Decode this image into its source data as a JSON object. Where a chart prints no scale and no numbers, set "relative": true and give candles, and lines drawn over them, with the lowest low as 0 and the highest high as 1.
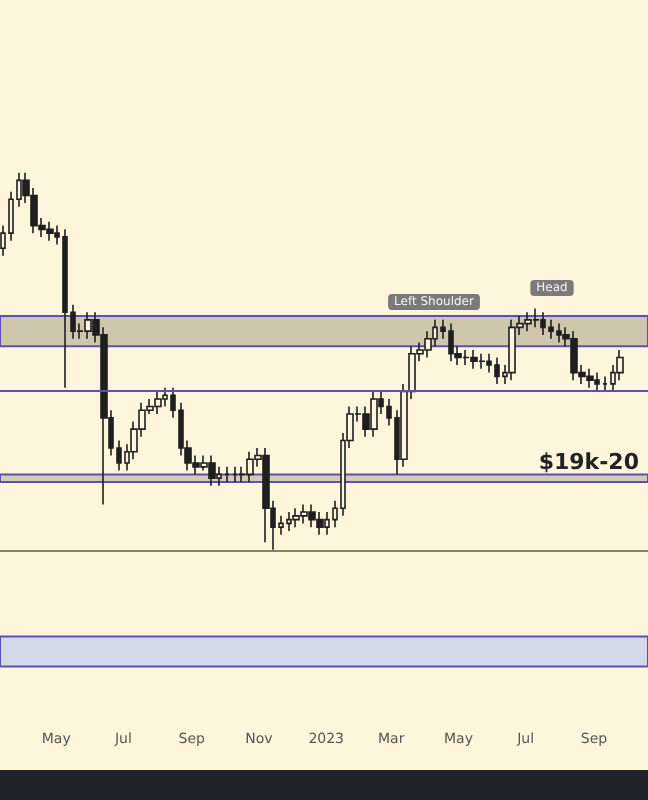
{
  "chart_data": {
    "type": "candlestick",
    "relative": true,
    "x": [
      "2022-03-14",
      "2022-03-21",
      "2022-03-28",
      "2022-04-04",
      "2022-04-11",
      "2022-04-18",
      "2022-04-25",
      "2022-05-02",
      "2022-05-09",
      "2022-05-16",
      "2022-05-23",
      "2022-05-30",
      "2022-06-06",
      "2022-06-13",
      "2022-06-20",
      "2022-06-27",
      "2022-07-04",
      "2022-07-11",
      "2022-07-18",
      "2022-07-25",
      "2022-08-01",
      "2022-08-08",
      "2022-08-15",
      "2022-08-22",
      "2022-08-29",
      "2022-09-05",
      "2022-09-12",
      "2022-09-19",
      "2022-09-26",
      "2022-10-03",
      "2022-10-10",
      "2022-10-17",
      "2022-10-24",
      "2022-10-31",
      "2022-11-07",
      "2022-11-14",
      "2022-11-21",
      "2022-11-28",
      "2022-12-05",
      "2022-12-12",
      "2022-12-19",
      "2022-12-26",
      "2023-01-02",
      "2023-01-09",
      "2023-01-16",
      "2023-01-23",
      "2023-01-30",
      "2023-02-06",
      "2023-02-13",
      "2023-02-20",
      "2023-02-27",
      "2023-03-06",
      "2023-03-13",
      "2023-03-20",
      "2023-03-27",
      "2023-04-03",
      "2023-04-10",
      "2023-04-17",
      "2023-04-24",
      "2023-05-01",
      "2023-05-08",
      "2023-05-15",
      "2023-05-22",
      "2023-05-29",
      "2023-06-05",
      "2023-06-12",
      "2023-06-19",
      "2023-06-26",
      "2023-07-03",
      "2023-07-10",
      "2023-07-17",
      "2023-07-24",
      "2023-07-31",
      "2023-08-07",
      "2023-08-14",
      "2023-08-21",
      "2023-08-28",
      "2023-09-04",
      "2023-09-11",
      "2023-09-18",
      "2023-09-25"
    ],
    "ohlc": [
      [
        0.8,
        0.86,
        0.78,
        0.84
      ],
      [
        0.84,
        0.95,
        0.82,
        0.93
      ],
      [
        0.93,
        1.0,
        0.91,
        0.98
      ],
      [
        0.98,
        1.0,
        0.92,
        0.94
      ],
      [
        0.94,
        0.96,
        0.84,
        0.86
      ],
      [
        0.86,
        0.88,
        0.83,
        0.85
      ],
      [
        0.85,
        0.87,
        0.82,
        0.84
      ],
      [
        0.84,
        0.86,
        0.81,
        0.83
      ],
      [
        0.83,
        0.85,
        0.43,
        0.63
      ],
      [
        0.63,
        0.65,
        0.56,
        0.58
      ],
      [
        0.58,
        0.6,
        0.56,
        0.58
      ],
      [
        0.58,
        0.63,
        0.56,
        0.61
      ],
      [
        0.61,
        0.63,
        0.55,
        0.57
      ],
      [
        0.57,
        0.59,
        0.12,
        0.35
      ],
      [
        0.35,
        0.37,
        0.25,
        0.27
      ],
      [
        0.27,
        0.29,
        0.21,
        0.23
      ],
      [
        0.23,
        0.28,
        0.21,
        0.26
      ],
      [
        0.26,
        0.34,
        0.24,
        0.32
      ],
      [
        0.32,
        0.39,
        0.3,
        0.37
      ],
      [
        0.37,
        0.4,
        0.36,
        0.38
      ],
      [
        0.38,
        0.42,
        0.36,
        0.4
      ],
      [
        0.4,
        0.43,
        0.38,
        0.41
      ],
      [
        0.41,
        0.43,
        0.35,
        0.37
      ],
      [
        0.37,
        0.39,
        0.25,
        0.27
      ],
      [
        0.27,
        0.29,
        0.21,
        0.23
      ],
      [
        0.23,
        0.25,
        0.2,
        0.22
      ],
      [
        0.22,
        0.25,
        0.21,
        0.23
      ],
      [
        0.23,
        0.25,
        0.17,
        0.19
      ],
      [
        0.19,
        0.22,
        0.17,
        0.2
      ],
      [
        0.2,
        0.22,
        0.18,
        0.2
      ],
      [
        0.2,
        0.22,
        0.18,
        0.2
      ],
      [
        0.2,
        0.22,
        0.18,
        0.2
      ],
      [
        0.2,
        0.26,
        0.18,
        0.24
      ],
      [
        0.24,
        0.27,
        0.22,
        0.25
      ],
      [
        0.25,
        0.27,
        0.02,
        0.11
      ],
      [
        0.11,
        0.13,
        0.0,
        0.06
      ],
      [
        0.06,
        0.09,
        0.04,
        0.07
      ],
      [
        0.07,
        0.1,
        0.05,
        0.08
      ],
      [
        0.08,
        0.11,
        0.06,
        0.09
      ],
      [
        0.09,
        0.12,
        0.07,
        0.1
      ],
      [
        0.1,
        0.12,
        0.06,
        0.08
      ],
      [
        0.08,
        0.1,
        0.04,
        0.06
      ],
      [
        0.06,
        0.1,
        0.04,
        0.08
      ],
      [
        0.08,
        0.13,
        0.06,
        0.11
      ],
      [
        0.11,
        0.31,
        0.09,
        0.29
      ],
      [
        0.29,
        0.38,
        0.27,
        0.36
      ],
      [
        0.36,
        0.38,
        0.34,
        0.36
      ],
      [
        0.36,
        0.38,
        0.3,
        0.32
      ],
      [
        0.32,
        0.42,
        0.3,
        0.4
      ],
      [
        0.4,
        0.42,
        0.36,
        0.38
      ],
      [
        0.38,
        0.4,
        0.33,
        0.35
      ],
      [
        0.35,
        0.37,
        0.2,
        0.24
      ],
      [
        0.24,
        0.44,
        0.22,
        0.42
      ],
      [
        0.42,
        0.54,
        0.4,
        0.52
      ],
      [
        0.52,
        0.55,
        0.5,
        0.53
      ],
      [
        0.53,
        0.58,
        0.51,
        0.56
      ],
      [
        0.56,
        0.61,
        0.54,
        0.59
      ],
      [
        0.59,
        0.61,
        0.56,
        0.58
      ],
      [
        0.58,
        0.6,
        0.5,
        0.52
      ],
      [
        0.52,
        0.54,
        0.49,
        0.51
      ],
      [
        0.51,
        0.53,
        0.49,
        0.51
      ],
      [
        0.51,
        0.53,
        0.48,
        0.5
      ],
      [
        0.5,
        0.52,
        0.48,
        0.5
      ],
      [
        0.5,
        0.52,
        0.47,
        0.49
      ],
      [
        0.49,
        0.51,
        0.44,
        0.46
      ],
      [
        0.46,
        0.49,
        0.44,
        0.47
      ],
      [
        0.47,
        0.61,
        0.45,
        0.59
      ],
      [
        0.59,
        0.62,
        0.57,
        0.6
      ],
      [
        0.6,
        0.63,
        0.58,
        0.61
      ],
      [
        0.61,
        0.64,
        0.59,
        0.61
      ],
      [
        0.61,
        0.63,
        0.57,
        0.59
      ],
      [
        0.59,
        0.61,
        0.56,
        0.58
      ],
      [
        0.58,
        0.6,
        0.55,
        0.57
      ],
      [
        0.57,
        0.59,
        0.54,
        0.56
      ],
      [
        0.56,
        0.58,
        0.45,
        0.47
      ],
      [
        0.47,
        0.49,
        0.44,
        0.46
      ],
      [
        0.46,
        0.48,
        0.43,
        0.45
      ],
      [
        0.45,
        0.47,
        0.42,
        0.44
      ],
      [
        0.44,
        0.46,
        0.42,
        0.44
      ],
      [
        0.44,
        0.49,
        0.42,
        0.47
      ],
      [
        0.47,
        0.53,
        0.45,
        0.51
      ]
    ],
    "color": "#1f1f1f",
    "xlim": [
      "2022-03-11",
      "2023-10-20"
    ],
    "xticks": [
      {
        "value": "2022-05-01",
        "label": "May"
      },
      {
        "value": "2022-07-01",
        "label": "Jul"
      },
      {
        "value": "2022-09-01",
        "label": "Sep"
      },
      {
        "value": "2022-11-01",
        "label": "Nov"
      },
      {
        "value": "2023-01-01",
        "label": "2023"
      },
      {
        "value": "2023-03-01",
        "label": "Mar"
      },
      {
        "value": "2023-05-01",
        "label": "May"
      },
      {
        "value": "2023-07-01",
        "label": "Jul"
      },
      {
        "value": "2023-09-01",
        "label": "Sep"
      }
    ],
    "tick_labels": "x",
    "grid": false,
    "bands": [
      {
        "axis": "y",
        "from": 0.54,
        "to": 0.62,
        "color": "#cfc6ae"
      },
      {
        "axis": "y",
        "from": 0.18,
        "to": 0.2,
        "color": "#d3cbb3",
        "label": "$19k-20"
      },
      {
        "axis": "y",
        "from": -0.31,
        "to": -0.23,
        "color": "#d2daea"
      }
    ],
    "ref_lines": [
      {
        "axis": "y",
        "value": 0.42,
        "color": "#5b50b8"
      }
    ],
    "annotations": [
      "Left Shoulder",
      "Head"
    ]
  }
}
